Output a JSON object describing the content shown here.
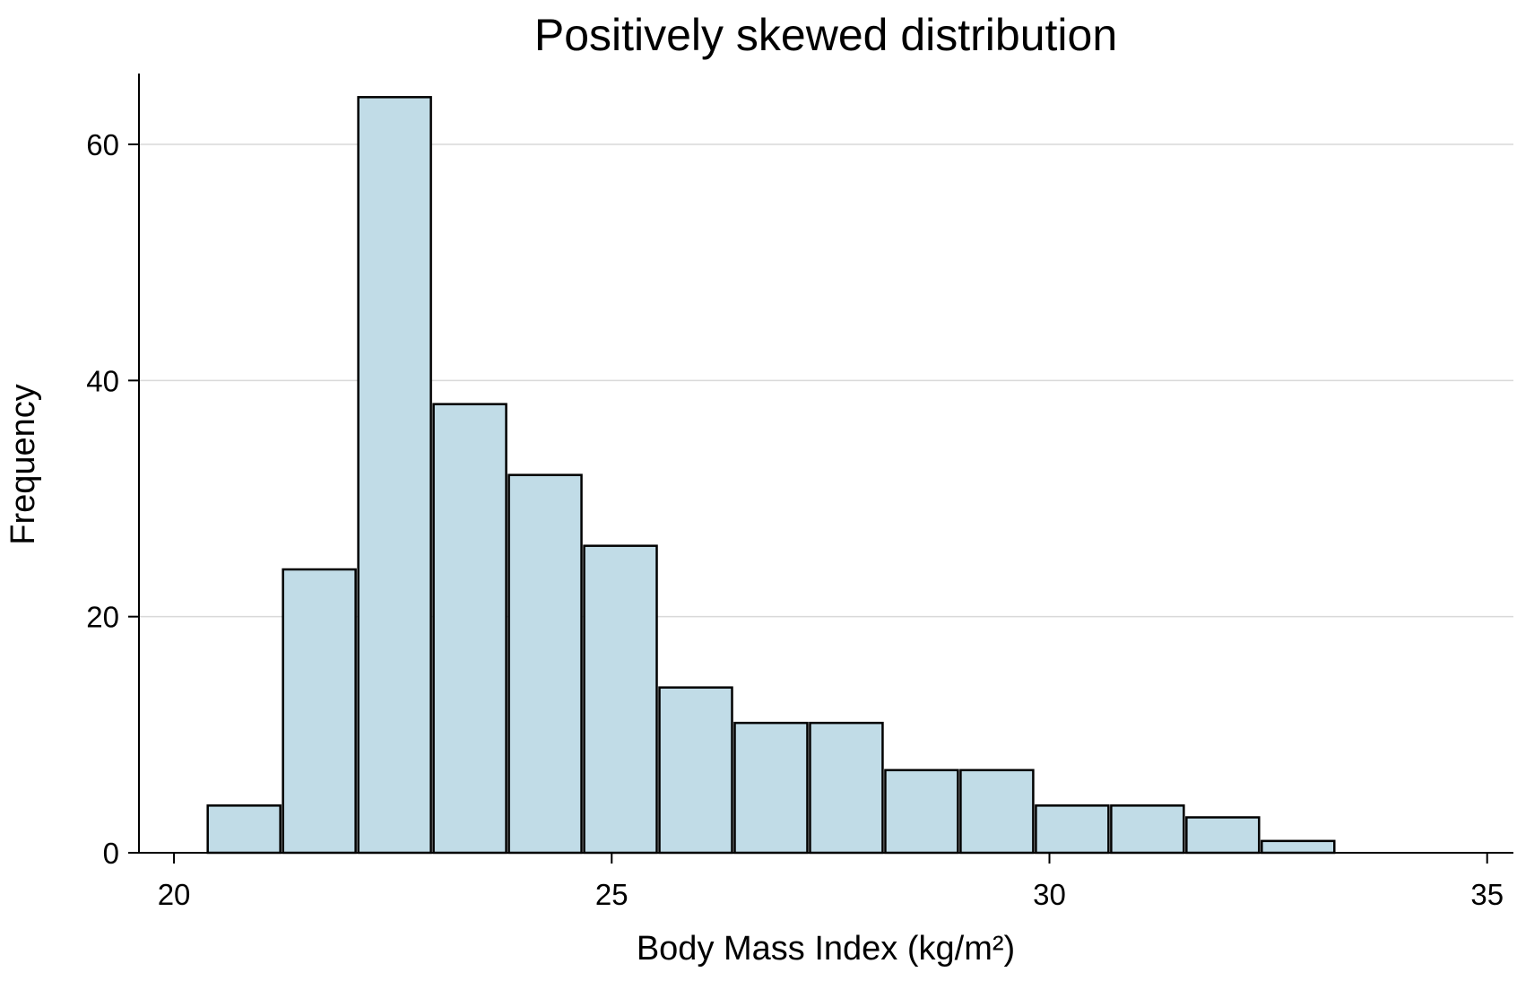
{
  "chart_data": {
    "type": "bar",
    "title": "Positively skewed distribution",
    "xlabel": "Body Mass Index (kg/m²)",
    "ylabel": "Frequency",
    "xlim": [
      19.6,
      35.3
    ],
    "ylim": [
      0,
      66
    ],
    "xticks": [
      20,
      25,
      30,
      35
    ],
    "yticks": [
      0,
      20,
      40,
      60
    ],
    "grid": true,
    "bins": [
      {
        "x0": 20.37,
        "x1": 21.23,
        "value": 4
      },
      {
        "x0": 21.23,
        "x1": 22.09,
        "value": 24
      },
      {
        "x0": 22.09,
        "x1": 22.95,
        "value": 64
      },
      {
        "x0": 22.95,
        "x1": 23.81,
        "value": 38
      },
      {
        "x0": 23.81,
        "x1": 24.67,
        "value": 32
      },
      {
        "x0": 24.67,
        "x1": 25.53,
        "value": 26
      },
      {
        "x0": 25.53,
        "x1": 26.39,
        "value": 14
      },
      {
        "x0": 26.39,
        "x1": 27.25,
        "value": 11
      },
      {
        "x0": 27.25,
        "x1": 28.11,
        "value": 11
      },
      {
        "x0": 28.11,
        "x1": 28.97,
        "value": 7
      },
      {
        "x0": 28.97,
        "x1": 29.83,
        "value": 7
      },
      {
        "x0": 29.83,
        "x1": 30.69,
        "value": 4
      },
      {
        "x0": 30.69,
        "x1": 31.55,
        "value": 4
      },
      {
        "x0": 31.55,
        "x1": 32.41,
        "value": 3
      },
      {
        "x0": 32.41,
        "x1": 33.27,
        "value": 1
      }
    ]
  }
}
